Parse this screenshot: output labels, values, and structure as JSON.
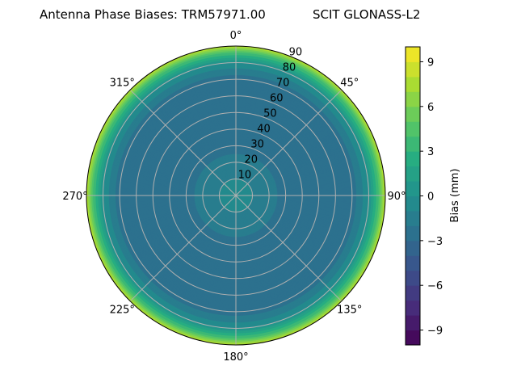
{
  "chart_data": {
    "type": "heatmap",
    "projection": "polar",
    "title_left": "Antenna Phase Biases: TRM57971.00",
    "title_right": "SCIT GLONASS-L2",
    "azimuth_direction": "clockwise",
    "azimuth_zero": "north",
    "azimuth_tick_labels": [
      "0°",
      "45°",
      "90°",
      "135°",
      "180°",
      "225°",
      "270°",
      "315°"
    ],
    "azimuth_ticks": [
      0,
      45,
      90,
      135,
      180,
      225,
      270,
      315
    ],
    "radial_tick_labels": [
      "10",
      "20",
      "30",
      "40",
      "50",
      "60",
      "70",
      "80",
      "90"
    ],
    "radial_ticks": [
      10,
      20,
      30,
      40,
      50,
      60,
      70,
      80,
      90
    ],
    "rlim": [
      0,
      90
    ],
    "grid": true,
    "colormap": "viridis",
    "colorbar": {
      "label": "Bias (mm)",
      "range": [
        -10,
        10
      ],
      "level_step": 1,
      "ticks": [
        -9,
        -6,
        -3,
        0,
        3,
        6,
        9
      ],
      "tick_labels": [
        "−9",
        "−6",
        "−3",
        "0",
        "3",
        "6",
        "9"
      ]
    },
    "zenith_profile": {
      "zenith": [
        0,
        10,
        20,
        30,
        40,
        50,
        60,
        70,
        75,
        80,
        83,
        86,
        88,
        90
      ],
      "bias": [
        -0.5,
        -1,
        -1.5,
        -2.5,
        -2.7,
        -3,
        -3,
        -2.5,
        -1.5,
        0,
        2,
        4,
        6,
        8
      ]
    }
  }
}
